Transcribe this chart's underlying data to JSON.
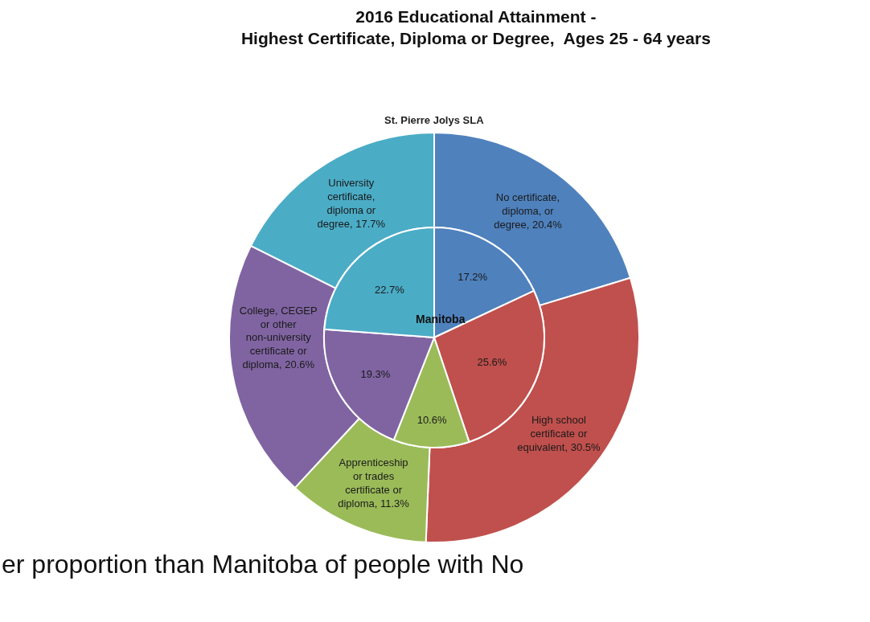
{
  "chart_data": {
    "type": "donut",
    "title": "2016 Educational Attainment -\nHighest Certificate, Diploma or Degree,  Ages 25 - 64 years",
    "categories": [
      "No certificate, diploma, or degree",
      "High school certificate or equivalent",
      "Apprenticeship or trades certificate or diploma",
      "College, CEGEP or other non-university certificate or diploma",
      "University certificate, diploma or degree"
    ],
    "colors": [
      "#4f81bd",
      "#c0504d",
      "#9bbb59",
      "#8064a2",
      "#4bacc6"
    ],
    "series": [
      {
        "name": "St. Pierre Jolys SLA",
        "values": [
          20.4,
          30.5,
          11.3,
          20.6,
          17.7
        ],
        "value_labels": [
          "20.4%",
          "30.5%",
          "11.3%",
          "20.6%",
          "17.7%"
        ]
      },
      {
        "name": "Manitoba",
        "values": [
          17.2,
          25.6,
          10.6,
          19.3,
          22.7
        ],
        "value_labels": [
          "17.2%",
          "25.6%",
          "10.6%",
          "19.3%",
          "22.7%"
        ]
      }
    ],
    "annotations": [
      "er proportion than Manitoba of people with No"
    ]
  }
}
